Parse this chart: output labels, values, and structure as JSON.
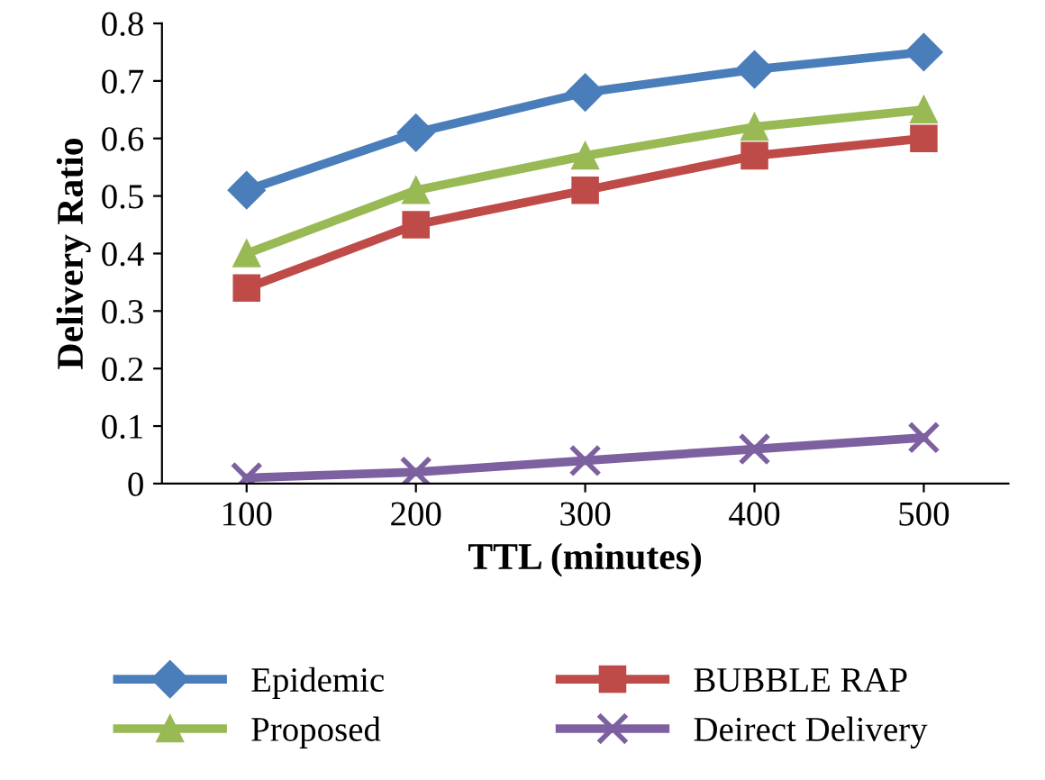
{
  "chart_data": {
    "type": "line",
    "xlabel": "TTL (minutes)",
    "ylabel": "Delivery Ratio",
    "categories": [
      "100",
      "200",
      "300",
      "400",
      "500"
    ],
    "series": [
      {
        "name": "Epidemic",
        "color": "#4a7ebb",
        "marker": "diamond",
        "values": [
          0.51,
          0.61,
          0.68,
          0.72,
          0.75
        ]
      },
      {
        "name": "Proposed",
        "color": "#98b954",
        "marker": "triangle",
        "values": [
          0.4,
          0.51,
          0.57,
          0.62,
          0.65
        ]
      },
      {
        "name": "BUBBLE RAP",
        "color": "#be4b48",
        "marker": "square",
        "values": [
          0.34,
          0.45,
          0.51,
          0.57,
          0.6
        ]
      },
      {
        "name": "Deirect Delivery",
        "color": "#7d60a0",
        "marker": "cross",
        "values": [
          0.01,
          0.02,
          0.04,
          0.06,
          0.08
        ]
      }
    ],
    "ylim": [
      0,
      0.8
    ],
    "yticks": [
      0,
      0.1,
      0.2,
      0.3,
      0.4,
      0.5,
      0.6,
      0.7,
      0.8
    ],
    "grid": false,
    "legend": "bottom",
    "line_style": "solid"
  }
}
